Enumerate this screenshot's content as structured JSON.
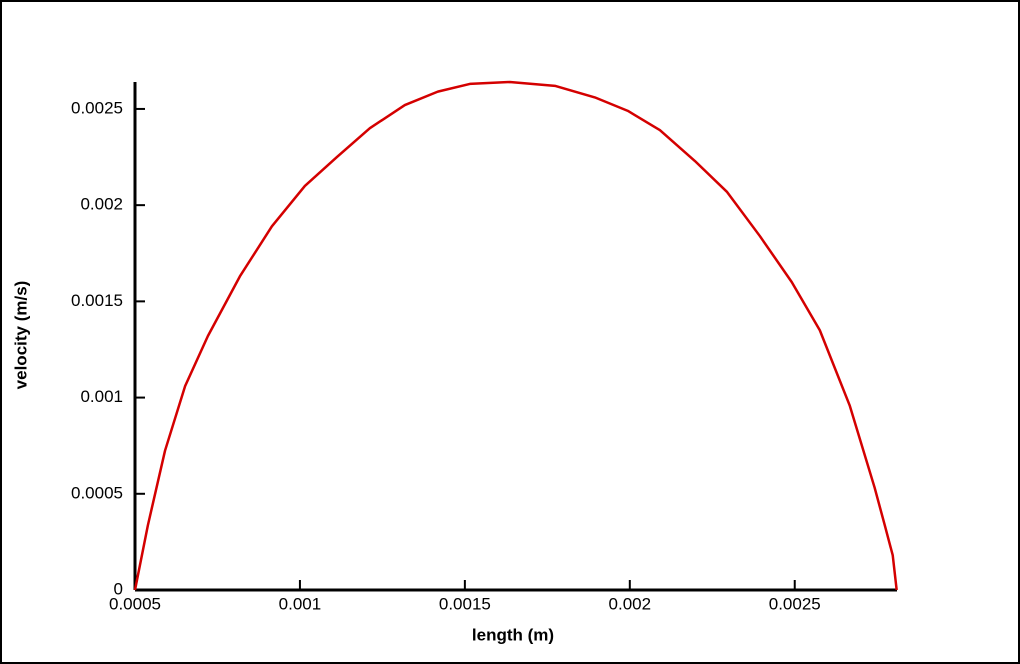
{
  "chart_data": {
    "type": "line",
    "xlabel": "length (m)",
    "ylabel": "velocity (m/s)",
    "xlim": [
      0.0005,
      0.00281
    ],
    "ylim": [
      0,
      0.00264
    ],
    "xticks": [
      0.0005,
      0.001,
      0.0015,
      0.002,
      0.0025
    ],
    "yticks": [
      0,
      0.0005,
      0.001,
      0.0015,
      0.002,
      0.0025
    ],
    "series": [
      {
        "color": "#d40000",
        "x": [
          0.0005,
          0.000539,
          0.000591,
          0.000652,
          0.000721,
          0.000818,
          0.000915,
          0.001015,
          0.001112,
          0.001212,
          0.001318,
          0.001418,
          0.001515,
          0.001636,
          0.001773,
          0.001894,
          0.001994,
          0.002091,
          0.002197,
          0.002294,
          0.002394,
          0.002491,
          0.002576,
          0.002667,
          0.002742,
          0.002773,
          0.002797,
          0.002809
        ],
        "values": [
          0,
          0.000336,
          0.000724,
          0.00106,
          0.00132,
          0.00163,
          0.00189,
          0.0021,
          0.00225,
          0.0024,
          0.00252,
          0.00259,
          0.00263,
          0.00264,
          0.00262,
          0.00256,
          0.00249,
          0.00239,
          0.00223,
          0.00207,
          0.00184,
          0.0016,
          0.00135,
          0.000957,
          0.000533,
          0.000336,
          0.000181,
          0
        ]
      }
    ]
  }
}
